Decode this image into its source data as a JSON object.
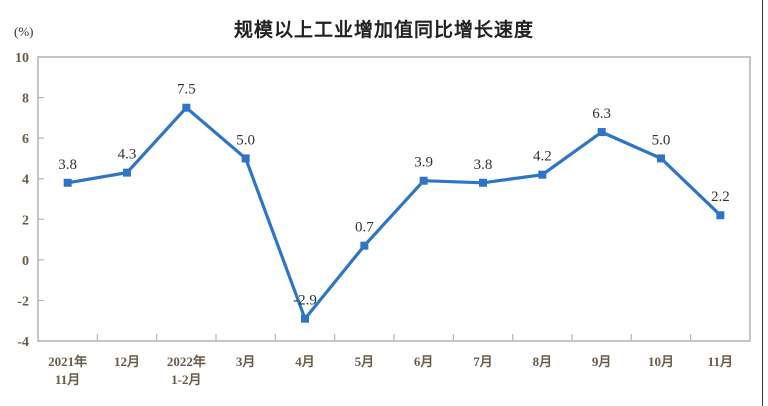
{
  "chart_data": {
    "type": "line",
    "title": "规模以上工业增加值同比增长速度",
    "ylabel": "(%)",
    "xlabel": "",
    "categories": [
      [
        "2021年",
        "11月"
      ],
      [
        "12月"
      ],
      [
        "2022年",
        "1-2月"
      ],
      [
        "3月"
      ],
      [
        "4月"
      ],
      [
        "5月"
      ],
      [
        "6月"
      ],
      [
        "7月"
      ],
      [
        "8月"
      ],
      [
        "9月"
      ],
      [
        "10月"
      ],
      [
        "11月"
      ]
    ],
    "series": [
      {
        "name": "规模以上工业增加值同比增长速度",
        "values": [
          3.8,
          4.3,
          7.5,
          5.0,
          -2.9,
          0.7,
          3.9,
          3.8,
          4.2,
          6.3,
          5.0,
          2.2
        ],
        "labels": [
          "3.8",
          "4.3",
          "7.5",
          "5.0",
          "-2.9",
          "0.7",
          "3.9",
          "3.8",
          "4.2",
          "6.3",
          "5.0",
          "2.2"
        ],
        "color": "#2e75c6"
      }
    ],
    "ylim": [
      -4,
      10
    ],
    "yticks": [
      10,
      8,
      6,
      4,
      2,
      0,
      -2,
      -4
    ],
    "grid": false,
    "legend": "none"
  },
  "colors": {
    "line": "#2e75c6",
    "frame": "#b8b8b8",
    "tick_label": "#6a5a4a",
    "data_label": "#333333"
  }
}
